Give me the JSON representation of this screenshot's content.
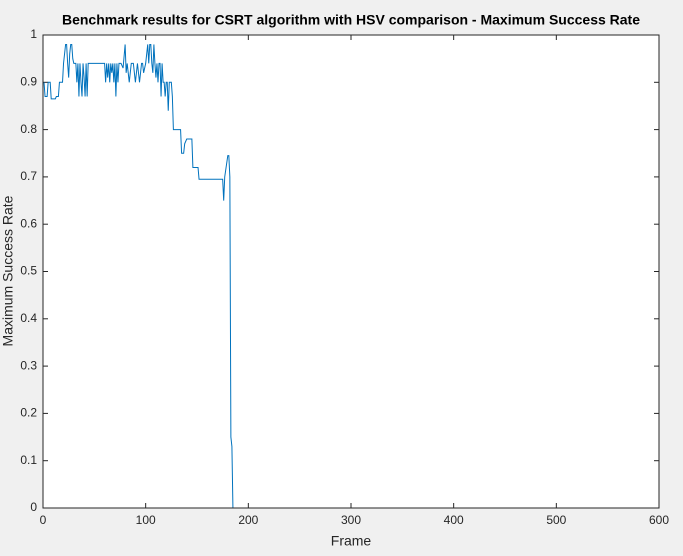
{
  "chart_data": {
    "type": "line",
    "title": "Benchmark results for CSRT algorithm with HSV comparison - Maximum Success Rate",
    "x_label": "Frame",
    "y_label": "Maximum Success Rate",
    "xlim": [
      0,
      600
    ],
    "xticks": [
      0,
      100,
      200,
      300,
      400,
      500,
      600
    ],
    "ylim": [
      0,
      1
    ],
    "yticks": [
      0,
      0.1,
      0.2,
      0.3,
      0.4,
      0.5,
      0.6,
      0.7,
      0.8,
      0.9,
      1
    ],
    "grid": false,
    "series": [
      {
        "color": "#0072bd",
        "x": [
          1,
          2,
          4,
          5,
          7,
          8,
          12,
          13,
          15,
          16,
          19,
          20,
          21,
          22,
          23,
          24,
          25,
          26,
          27,
          28,
          29,
          30,
          32,
          33,
          34,
          35,
          36,
          37,
          38,
          39,
          40,
          41,
          42,
          43,
          44,
          60,
          61,
          62,
          63,
          64,
          65,
          66,
          67,
          68,
          69,
          70,
          71,
          72,
          73,
          74,
          76,
          78,
          80,
          81,
          82,
          84,
          86,
          88,
          90,
          92,
          94,
          96,
          97,
          98,
          100,
          102,
          103,
          104,
          105,
          106,
          107,
          108,
          109,
          110,
          111,
          112,
          113,
          114,
          115,
          116,
          117,
          118,
          119,
          120,
          121,
          122,
          123,
          125,
          126,
          127,
          134,
          135,
          137,
          138,
          140,
          145,
          146,
          151,
          152,
          175,
          176,
          177,
          179,
          180,
          181,
          182,
          183,
          184,
          185,
          600
        ],
        "values": [
          0.9,
          0.87,
          0.87,
          0.9,
          0.9,
          0.865,
          0.865,
          0.87,
          0.87,
          0.9,
          0.9,
          0.94,
          0.96,
          0.98,
          0.98,
          0.94,
          0.91,
          0.96,
          0.98,
          0.98,
          0.95,
          0.94,
          0.94,
          0.9,
          0.94,
          0.87,
          0.94,
          0.9,
          0.87,
          0.94,
          0.91,
          0.87,
          0.94,
          0.87,
          0.94,
          0.94,
          0.9,
          0.94,
          0.91,
          0.94,
          0.9,
          0.94,
          0.92,
          0.94,
          0.9,
          0.94,
          0.87,
          0.94,
          0.9,
          0.94,
          0.94,
          0.93,
          0.98,
          0.92,
          0.94,
          0.9,
          0.94,
          0.94,
          0.9,
          0.94,
          0.9,
          0.94,
          0.94,
          0.92,
          0.94,
          0.98,
          0.94,
          0.98,
          0.98,
          0.94,
          0.92,
          0.98,
          0.94,
          0.91,
          0.94,
          0.9,
          0.94,
          0.94,
          0.87,
          0.94,
          0.9,
          0.9,
          0.87,
          0.9,
          0.9,
          0.84,
          0.9,
          0.9,
          0.87,
          0.8,
          0.8,
          0.75,
          0.75,
          0.77,
          0.78,
          0.78,
          0.72,
          0.72,
          0.695,
          0.695,
          0.65,
          0.7,
          0.73,
          0.745,
          0.745,
          0.7,
          0.15,
          0.13,
          0,
          0
        ]
      }
    ]
  }
}
